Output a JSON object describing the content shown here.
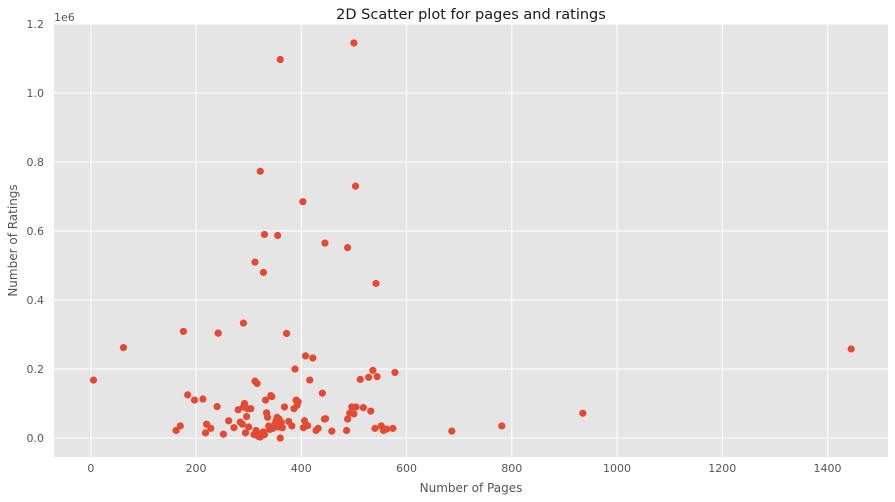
{
  "chart_data": {
    "type": "scatter",
    "title": "2D Scatter plot for pages and ratings",
    "xlabel": "Number of Pages",
    "ylabel": "Number of Ratings",
    "y_offset_label": "1e6",
    "xlim": [
      -70,
      1515
    ],
    "ylim": [
      -55000,
      1200000
    ],
    "x_ticks": [
      0,
      200,
      400,
      600,
      800,
      1000,
      1200,
      1400
    ],
    "y_ticks": [
      0,
      200000,
      400000,
      600000,
      800000,
      1000000,
      1200000
    ],
    "y_tick_labels": [
      "0.0",
      "0.2",
      "0.4",
      "0.6",
      "0.8",
      "1.0",
      "1.2"
    ],
    "grid": true,
    "background_color": "#e5e5e5",
    "grid_color": "#ffffff",
    "marker_color": "#e24a33",
    "series": [
      {
        "x": [
          5,
          62,
          176,
          162,
          170,
          184,
          197,
          213,
          218,
          220,
          228,
          240,
          242,
          252,
          262,
          272,
          280,
          284,
          288,
          290,
          292,
          294,
          296,
          298,
          300,
          304,
          310,
          312,
          314,
          316,
          318,
          320,
          322,
          325,
          326,
          328,
          330,
          332,
          334,
          336,
          338,
          340,
          342,
          344,
          346,
          350,
          352,
          354,
          356,
          358,
          360,
          362,
          364,
          368,
          372,
          376,
          382,
          386,
          388,
          390,
          392,
          394,
          404,
          406,
          408,
          412,
          416,
          422,
          428,
          432,
          440,
          444,
          446,
          458,
          486,
          488,
          492,
          496,
          500,
          504,
          512,
          518,
          528,
          532,
          536,
          540,
          544,
          552,
          556,
          562,
          574,
          578,
          686,
          781,
          935,
          1445,
          360,
          500,
          322,
          503,
          403,
          330,
          355,
          445,
          488,
          312,
          328,
          542,
          290,
          242
        ],
        "y": [
          168000,
          262000,
          309000,
          22000,
          35000,
          125000,
          110000,
          113000,
          15000,
          40000,
          28000,
          91000,
          304000,
          11000,
          50000,
          30000,
          82000,
          46000,
          40000,
          90000,
          100000,
          15000,
          62000,
          85000,
          32000,
          85000,
          10000,
          165000,
          22000,
          158000,
          5000,
          8000,
          3000,
          12000,
          14000,
          18000,
          10000,
          110000,
          73000,
          60000,
          35000,
          25000,
          123000,
          120000,
          28000,
          40000,
          50000,
          60000,
          32000,
          55000,
          0,
          45000,
          30000,
          90000,
          303000,
          48000,
          35000,
          85000,
          200000,
          110000,
          95000,
          105000,
          30000,
          50000,
          238000,
          36000,
          168000,
          232000,
          22000,
          28000,
          130000,
          55000,
          56000,
          20000,
          22000,
          55000,
          72000,
          90000,
          70000,
          90000,
          170000,
          88000,
          176000,
          78000,
          196000,
          28000,
          178000,
          35000,
          22000,
          26000,
          28000,
          190000,
          20000,
          35000,
          72000,
          258000,
          1097000,
          1145000,
          773000,
          730000,
          685000,
          590000,
          587000,
          565000,
          552000,
          510000,
          480000,
          448000,
          333000,
          304000
        ]
      }
    ]
  }
}
